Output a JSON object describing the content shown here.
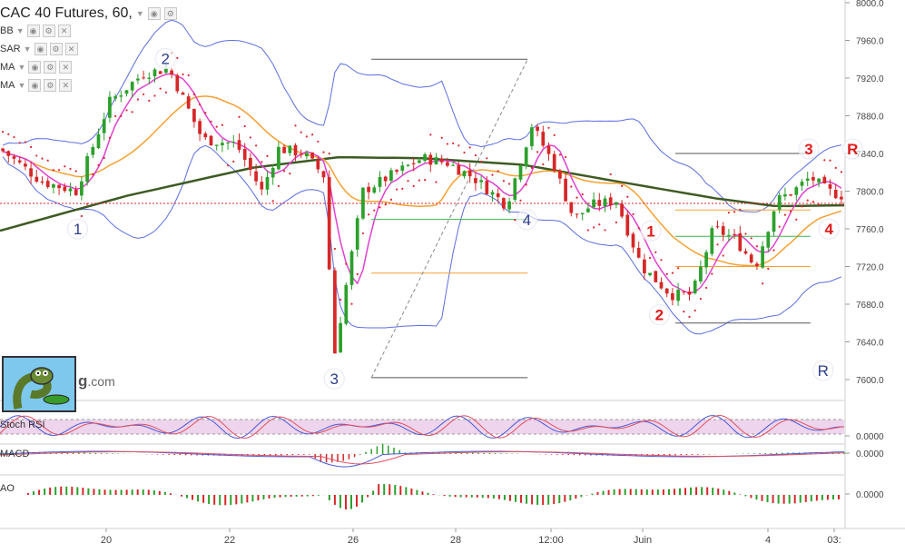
{
  "header": {
    "title": "CAC 40 Futures, 60,",
    "indicators": [
      "BB",
      "SAR",
      "MA",
      "MA"
    ]
  },
  "panes": {
    "stoch_label": "Stoch RSI",
    "macd_label": "MACD",
    "ao_label": "AO",
    "stoch_value": "0.0000",
    "macd_value": "0.0000",
    "ao_value": "0.0000"
  },
  "logo": {
    "text_bold": "g",
    "text_rest": ".com"
  },
  "colors": {
    "bull": "#2ca02c",
    "bear": "#d62728",
    "bollinger": "#5b6ee1",
    "sar": "#e0242d",
    "ma_fast": "#e040d0",
    "ma_mid": "#f5a030",
    "ma_slow": "#3e5a23",
    "wave_blue": "#2e3d8f",
    "wave_red": "#e01b1b",
    "stoch_band": "#e2b7df"
  },
  "chart_data": {
    "type": "candlestick",
    "title": "CAC 40 Futures, 60,",
    "ylim": [
      7580,
      8000
    ],
    "yticks": [
      "8000.0",
      "7960.0",
      "7920.0",
      "7880.0",
      "7840.0",
      "7800.0",
      "7760.0",
      "7720.0",
      "7680.0",
      "7640.0",
      "7600.0"
    ],
    "xticks": [
      "20",
      "22",
      "26",
      "28",
      "12:00",
      "Juin",
      "4",
      "03:"
    ],
    "price_path": [
      {
        "x": 0,
        "y": 7845
      },
      {
        "x": 0.05,
        "y": 7810
      },
      {
        "x": 0.09,
        "y": 7800
      },
      {
        "x": 0.13,
        "y": 7895
      },
      {
        "x": 0.17,
        "y": 7925
      },
      {
        "x": 0.2,
        "y": 7930
      },
      {
        "x": 0.24,
        "y": 7855
      },
      {
        "x": 0.28,
        "y": 7850
      },
      {
        "x": 0.31,
        "y": 7800
      },
      {
        "x": 0.33,
        "y": 7845
      },
      {
        "x": 0.36,
        "y": 7840
      },
      {
        "x": 0.385,
        "y": 7815
      },
      {
        "x": 0.395,
        "y": 7620
      },
      {
        "x": 0.41,
        "y": 7700
      },
      {
        "x": 0.43,
        "y": 7800
      },
      {
        "x": 0.47,
        "y": 7820
      },
      {
        "x": 0.5,
        "y": 7835
      },
      {
        "x": 0.53,
        "y": 7830
      },
      {
        "x": 0.56,
        "y": 7815
      },
      {
        "x": 0.6,
        "y": 7785
      },
      {
        "x": 0.63,
        "y": 7870
      },
      {
        "x": 0.655,
        "y": 7830
      },
      {
        "x": 0.68,
        "y": 7770
      },
      {
        "x": 0.7,
        "y": 7785
      },
      {
        "x": 0.73,
        "y": 7790
      },
      {
        "x": 0.76,
        "y": 7720
      },
      {
        "x": 0.795,
        "y": 7690
      },
      {
        "x": 0.82,
        "y": 7690
      },
      {
        "x": 0.845,
        "y": 7760
      },
      {
        "x": 0.87,
        "y": 7750
      },
      {
        "x": 0.895,
        "y": 7720
      },
      {
        "x": 0.92,
        "y": 7790
      },
      {
        "x": 0.94,
        "y": 7800
      },
      {
        "x": 0.96,
        "y": 7815
      },
      {
        "x": 0.98,
        "y": 7800
      },
      {
        "x": 1,
        "y": 7795
      }
    ],
    "ma_slow": [
      {
        "x": 0,
        "y": 7758
      },
      {
        "x": 0.15,
        "y": 7795
      },
      {
        "x": 0.3,
        "y": 7825
      },
      {
        "x": 0.4,
        "y": 7836
      },
      {
        "x": 0.5,
        "y": 7835
      },
      {
        "x": 0.62,
        "y": 7828
      },
      {
        "x": 0.72,
        "y": 7812
      },
      {
        "x": 0.85,
        "y": 7792
      },
      {
        "x": 0.92,
        "y": 7784
      },
      {
        "x": 1,
        "y": 7785
      }
    ],
    "current_level": 7787,
    "elliott_waves": [
      {
        "label": "1",
        "color": "blue",
        "x": 0.092,
        "y": 7755
      },
      {
        "label": "2",
        "color": "blue",
        "x": 0.196,
        "y": 7936
      },
      {
        "label": "3",
        "color": "blue",
        "x": 0.396,
        "y": 7596
      },
      {
        "label": "4",
        "color": "blue",
        "x": 0.624,
        "y": 7765
      },
      {
        "label": "R",
        "color": "blue",
        "x": 0.975,
        "y": 7605
      },
      {
        "label": "1",
        "color": "red",
        "x": 0.771,
        "y": 7753
      },
      {
        "label": "2",
        "color": "red",
        "x": 0.781,
        "y": 7664
      },
      {
        "label": "3",
        "color": "red",
        "x": 0.958,
        "y": 7840
      },
      {
        "label": "4",
        "color": "red",
        "x": 0.982,
        "y": 7755
      },
      {
        "label": "R",
        "color": "red",
        "x": 1.01,
        "y": 7840
      }
    ],
    "horizontal_levels": [
      {
        "y": 7940,
        "color": "#555",
        "x0": 0.44,
        "x1": 0.625
      },
      {
        "y": 7602,
        "color": "#555",
        "x0": 0.44,
        "x1": 0.625
      },
      {
        "y": 7770,
        "color": "#3fb34f",
        "x0": 0.44,
        "x1": 0.625
      },
      {
        "y": 7713,
        "color": "#f5a030",
        "x0": 0.44,
        "x1": 0.625
      },
      {
        "y": 7840,
        "color": "#555",
        "x0": 0.8,
        "x1": 0.96
      },
      {
        "y": 7660,
        "color": "#555",
        "x0": 0.8,
        "x1": 0.96
      },
      {
        "y": 7780,
        "color": "#f5a030",
        "x0": 0.8,
        "x1": 0.96
      },
      {
        "y": 7752,
        "color": "#3fb34f",
        "x0": 0.8,
        "x1": 0.96
      },
      {
        "y": 7720,
        "color": "#f5a030",
        "x0": 0.8,
        "x1": 0.96
      }
    ],
    "trendline": {
      "x0": 0.44,
      "y0": 7602,
      "x1": 0.625,
      "y1": 7940
    },
    "stoch_range": [
      0,
      1
    ],
    "macd_range": [
      -1,
      1
    ],
    "ao_range": [
      -1,
      1
    ]
  }
}
